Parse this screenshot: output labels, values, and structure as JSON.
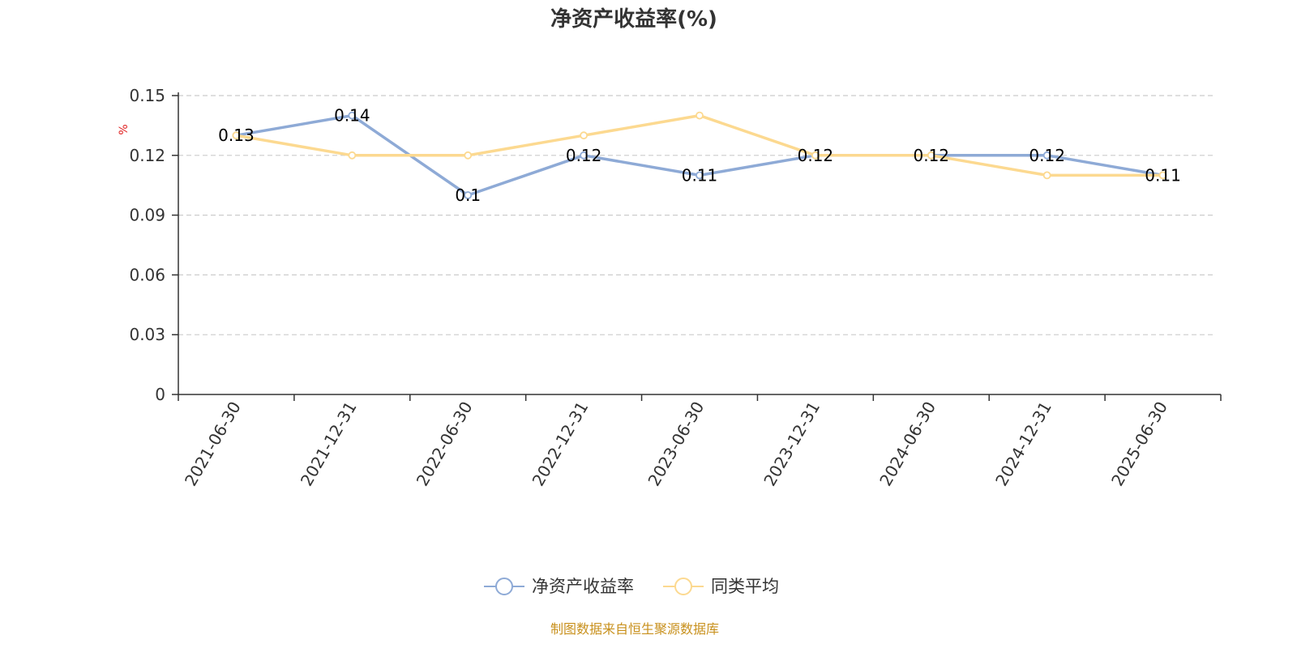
{
  "chart_data": {
    "type": "line",
    "title": "净资产收益率(%)",
    "ylabel": "%",
    "xlabel": "",
    "categories": [
      "2021-06-30",
      "2021-12-31",
      "2022-06-30",
      "2022-12-31",
      "2023-06-30",
      "2023-12-31",
      "2024-06-30",
      "2024-12-31",
      "2025-06-30"
    ],
    "ylim": [
      0,
      0.15
    ],
    "yticks": [
      "0",
      "0.03",
      "0.06",
      "0.09",
      "0.12",
      "0.15"
    ],
    "grid": true,
    "legend_position": "bottom-center",
    "series": [
      {
        "name": "净资产收益率",
        "color": "#8eaad6",
        "values": [
          0.13,
          0.14,
          0.1,
          0.12,
          0.11,
          0.12,
          0.12,
          0.12,
          0.11
        ],
        "labels": [
          "0.13",
          "0.14",
          "0.1",
          "0.12",
          "0.11",
          "0.12",
          "0.12",
          "0.12",
          "0.11"
        ]
      },
      {
        "name": "同类平均",
        "color": "#fcd990",
        "values": [
          0.13,
          0.12,
          0.12,
          0.13,
          0.14,
          0.12,
          0.12,
          0.11,
          0.11
        ]
      }
    ]
  },
  "footer": {
    "source": "制图数据来自恒生聚源数据库"
  }
}
